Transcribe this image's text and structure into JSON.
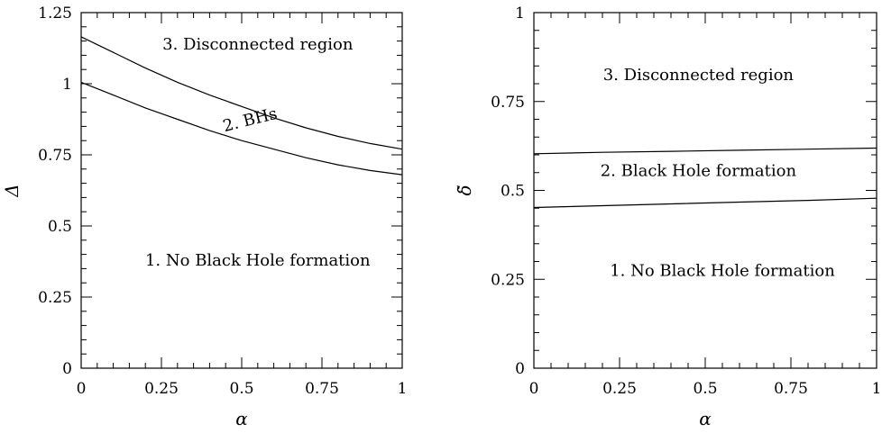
{
  "chart_data": [
    {
      "type": "line",
      "title": "",
      "xlabel": "α",
      "ylabel": "Δ",
      "xlim": [
        0,
        1
      ],
      "ylim": [
        0,
        1.25
      ],
      "x_ticks": [
        "0",
        "0.25",
        "0.5",
        "0.75",
        "1"
      ],
      "y_ticks": [
        "0",
        "0.25",
        "0.5",
        "0.75",
        "1",
        "1.25"
      ],
      "grid": false,
      "series": [
        {
          "x": [
            0,
            0.1,
            0.2,
            0.3,
            0.4,
            0.5,
            0.6,
            0.7,
            0.8,
            0.9,
            1.0
          ],
          "y": [
            1.005,
            0.96,
            0.915,
            0.875,
            0.835,
            0.8,
            0.77,
            0.74,
            0.715,
            0.695,
            0.68
          ]
        },
        {
          "x": [
            0,
            0.1,
            0.2,
            0.3,
            0.4,
            0.5,
            0.6,
            0.7,
            0.8,
            0.9,
            1.0
          ],
          "y": [
            1.165,
            1.11,
            1.055,
            1.005,
            0.96,
            0.92,
            0.88,
            0.845,
            0.815,
            0.79,
            0.77
          ]
        }
      ],
      "annotations": [
        {
          "text": "3. Disconnected region",
          "x": 0.55,
          "y": 1.12
        },
        {
          "text": "2. BHs",
          "x": 0.53,
          "y": 0.855,
          "rotate": -14
        },
        {
          "text": "1. No Black Hole formation",
          "x": 0.55,
          "y": 0.36
        }
      ]
    },
    {
      "type": "line",
      "title": "",
      "xlabel": "α",
      "ylabel": "δ̃",
      "xlim": [
        0,
        1
      ],
      "ylim": [
        0,
        1
      ],
      "x_ticks": [
        "0",
        "0.25",
        "0.5",
        "0.75",
        "1"
      ],
      "y_ticks": [
        "0",
        "0.25",
        "0.5",
        "0.75",
        "1"
      ],
      "grid": false,
      "series": [
        {
          "x": [
            0,
            0.2,
            0.4,
            0.6,
            0.8,
            1.0
          ],
          "y": [
            0.452,
            0.457,
            0.462,
            0.467,
            0.472,
            0.478
          ]
        },
        {
          "x": [
            0,
            0.2,
            0.4,
            0.6,
            0.8,
            1.0
          ],
          "y": [
            0.603,
            0.607,
            0.61,
            0.613,
            0.616,
            0.619
          ]
        }
      ],
      "annotations": [
        {
          "text": "3. Disconnected region",
          "x": 0.48,
          "y": 0.81
        },
        {
          "text": "2. Black Hole formation",
          "x": 0.48,
          "y": 0.54
        },
        {
          "text": "1. No Black Hole formation",
          "x": 0.55,
          "y": 0.26
        }
      ]
    }
  ]
}
